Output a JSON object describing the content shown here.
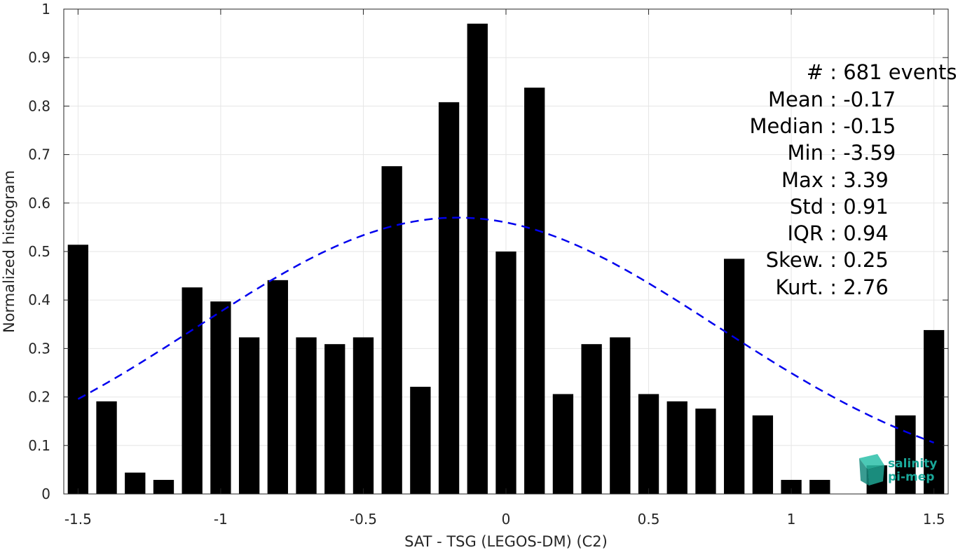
{
  "chart_data": {
    "type": "bar",
    "title": "",
    "xlabel": "SAT - TSG (LEGOS-DM) (C2)",
    "ylabel": "Normalized histogram",
    "xlim": [
      -1.55,
      1.55
    ],
    "ylim": [
      0,
      1
    ],
    "grid": true,
    "x": [
      -1.5,
      -1.4,
      -1.3,
      -1.2,
      -1.1,
      -1.0,
      -0.9,
      -0.8,
      -0.7,
      -0.6,
      -0.5,
      -0.4,
      -0.3,
      -0.2,
      -0.1,
      0.0,
      0.1,
      0.2,
      0.3,
      0.4,
      0.5,
      0.6,
      0.7,
      0.8,
      0.9,
      1.0,
      1.1,
      1.2,
      1.3,
      1.4,
      1.5
    ],
    "values": [
      0.514,
      0.191,
      0.044,
      0.029,
      0.426,
      0.397,
      0.323,
      0.441,
      0.323,
      0.309,
      0.323,
      0.676,
      0.221,
      0.808,
      0.97,
      0.5,
      0.838,
      0.206,
      0.309,
      0.323,
      0.206,
      0.191,
      0.176,
      0.485,
      0.162,
      0.029,
      0.029,
      0.0,
      0.059,
      0.162,
      0.338
    ],
    "x_ticks": [
      -1.5,
      -1,
      -0.5,
      0,
      0.5,
      1,
      1.5
    ],
    "x_tick_labels": [
      "-1.5",
      "-1",
      "-0.5",
      "0",
      "0.5",
      "1",
      "1.5"
    ],
    "y_ticks": [
      0,
      0.1,
      0.2,
      0.3,
      0.4,
      0.5,
      0.6,
      0.7,
      0.8,
      0.9,
      1
    ],
    "y_tick_labels": [
      "0",
      "0.1",
      "0.2",
      "0.3",
      "0.4",
      "0.5",
      "0.6",
      "0.7",
      "0.8",
      "0.9",
      "1"
    ],
    "fit_curve": {
      "style": "dashed",
      "color": "#0000ee",
      "mean": -0.17,
      "std": 0.91,
      "x_range": [
        -1.5,
        1.5
      ]
    },
    "bar_color": "#000000",
    "stats": [
      {
        "label": "#",
        "sep": " : ",
        "value": "681 events"
      },
      {
        "label": "Mean",
        "sep": " : ",
        "value": "-0.17"
      },
      {
        "label": "Median",
        "sep": " : ",
        "value": "-0.15"
      },
      {
        "label": "Min",
        "sep": " : ",
        "value": "-3.59"
      },
      {
        "label": "Max",
        "sep": " : ",
        "value": "3.39"
      },
      {
        "label": "Std",
        "sep": " : ",
        "value": "0.91"
      },
      {
        "label": "IQR",
        "sep": " : ",
        "value": "0.94"
      },
      {
        "label": "Skew.",
        "sep": " : ",
        "value": "0.25"
      },
      {
        "label": "Kurt.",
        "sep": " : ",
        "value": "2.76"
      }
    ]
  },
  "logo": {
    "line1": "salinity",
    "line2": "pi-mep",
    "color": "#1aa89a"
  }
}
